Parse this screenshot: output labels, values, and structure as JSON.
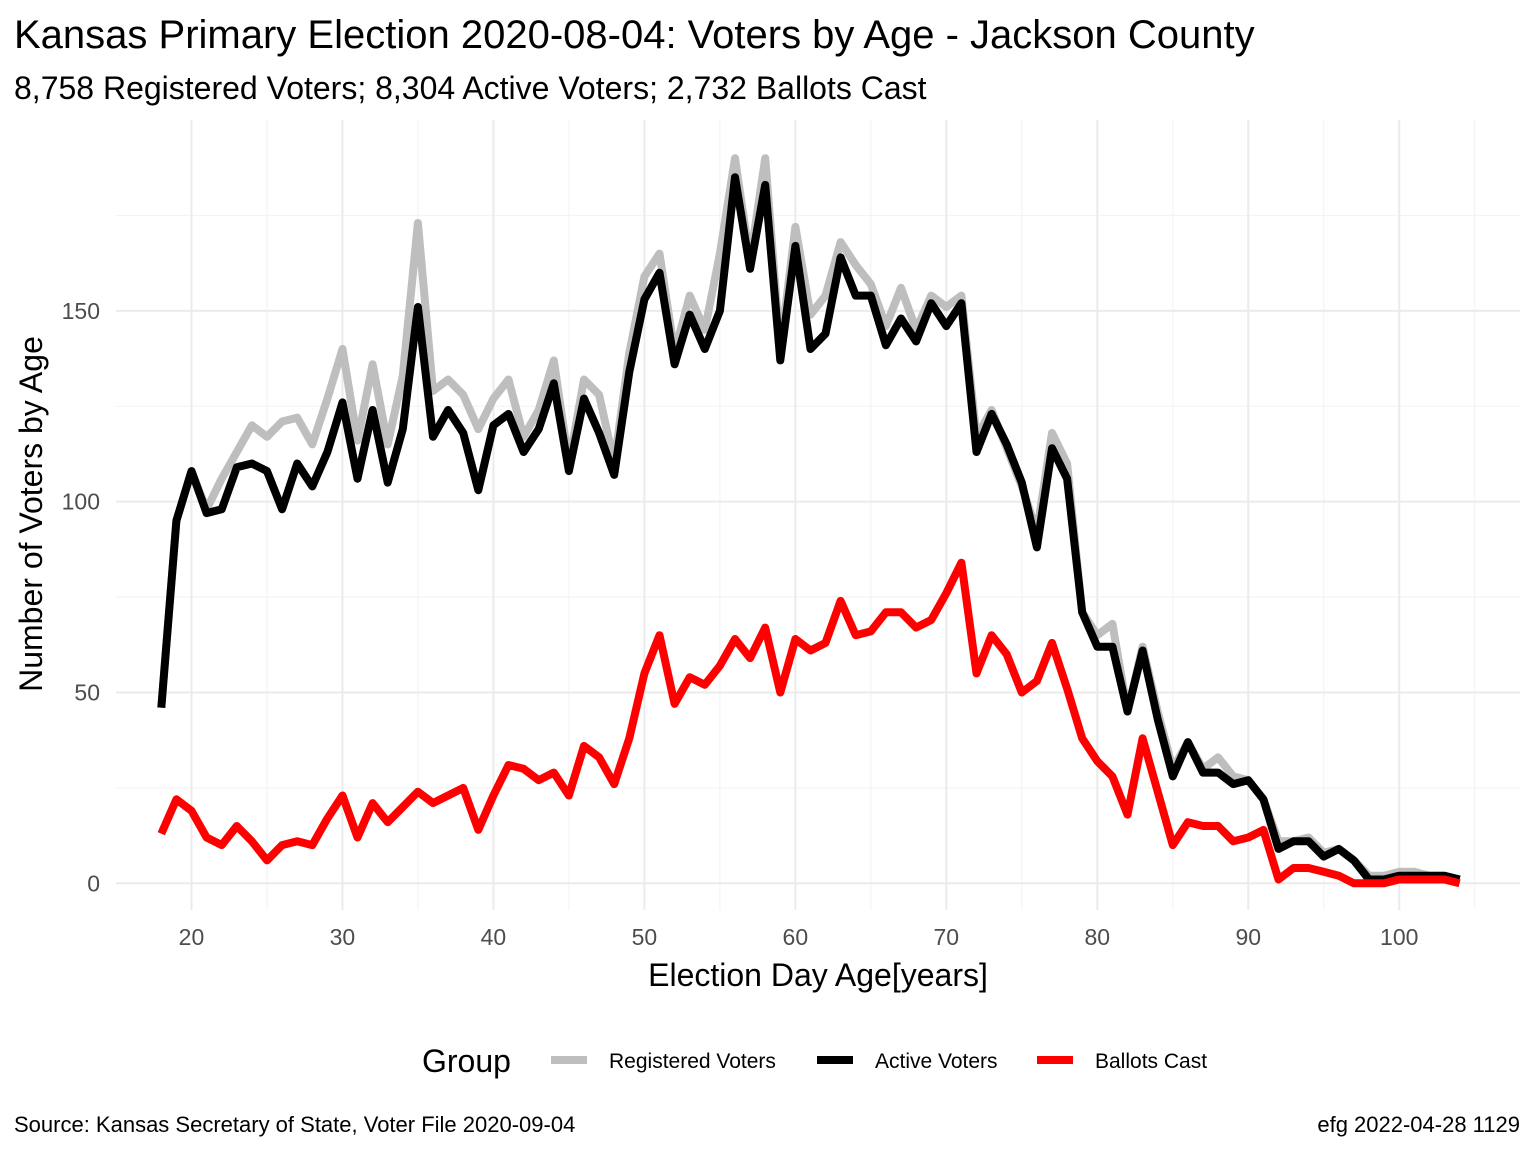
{
  "chart_data": {
    "type": "line",
    "title": "Kansas Primary Election 2020-08-04:  Voters by Age - Jackson County",
    "subtitle": "8,758 Registered Voters; 8,304 Active Voters; 2,732 Ballots Cast",
    "xlabel": "Election Day Age[years]",
    "ylabel": "Number of Voters by Age",
    "xlim": [
      15,
      108
    ],
    "ylim": [
      -7,
      200
    ],
    "x_ticks": [
      20,
      30,
      40,
      50,
      60,
      70,
      80,
      90,
      100
    ],
    "y_ticks": [
      0,
      50,
      100,
      150
    ],
    "legend": {
      "title": "Group",
      "position": "bottom"
    },
    "x": [
      18,
      19,
      20,
      21,
      22,
      23,
      24,
      25,
      26,
      27,
      28,
      29,
      30,
      31,
      32,
      33,
      34,
      35,
      36,
      37,
      38,
      39,
      40,
      41,
      42,
      43,
      44,
      45,
      46,
      47,
      48,
      49,
      50,
      51,
      52,
      53,
      54,
      55,
      56,
      57,
      58,
      59,
      60,
      61,
      62,
      63,
      64,
      65,
      66,
      67,
      68,
      69,
      70,
      71,
      72,
      73,
      74,
      75,
      76,
      77,
      78,
      79,
      80,
      81,
      82,
      83,
      84,
      85,
      86,
      87,
      88,
      89,
      90,
      91,
      92,
      93,
      94,
      95,
      96,
      97,
      98,
      99,
      100,
      101,
      102,
      103,
      104
    ],
    "series": [
      {
        "name": "Registered Voters",
        "color": "#bebebe",
        "values": [
          46,
          95,
          108,
          98,
          106,
          113,
          120,
          117,
          121,
          122,
          115,
          127,
          140,
          116,
          136,
          115,
          133,
          173,
          129,
          132,
          128,
          119,
          127,
          132,
          117,
          124,
          137,
          110,
          132,
          128,
          110,
          139,
          159,
          165,
          139,
          154,
          145,
          165,
          190,
          163,
          190,
          140,
          172,
          149,
          154,
          168,
          162,
          157,
          146,
          156,
          145,
          154,
          151,
          154,
          117,
          124,
          114,
          104,
          92,
          118,
          110,
          71,
          65,
          68,
          45,
          62,
          45,
          30,
          37,
          30,
          33,
          28,
          27,
          22,
          11,
          11,
          12,
          8,
          9,
          6,
          2,
          2,
          3,
          3,
          2,
          2,
          1
        ]
      },
      {
        "name": "Active Voters",
        "color": "#000000",
        "values": [
          46,
          95,
          108,
          97,
          98,
          109,
          110,
          108,
          98,
          110,
          104,
          113,
          126,
          106,
          124,
          105,
          119,
          151,
          117,
          124,
          118,
          103,
          120,
          123,
          113,
          119,
          131,
          108,
          127,
          118,
          107,
          134,
          153,
          160,
          136,
          149,
          140,
          150,
          185,
          161,
          183,
          137,
          167,
          140,
          144,
          164,
          154,
          154,
          141,
          148,
          142,
          152,
          146,
          152,
          113,
          123,
          115,
          105,
          88,
          114,
          106,
          71,
          62,
          62,
          45,
          61,
          43,
          28,
          37,
          29,
          29,
          26,
          27,
          22,
          9,
          11,
          11,
          7,
          9,
          6,
          1,
          1,
          2,
          2,
          2,
          2,
          1
        ]
      },
      {
        "name": "Ballots Cast",
        "color": "#ff0000",
        "values": [
          13,
          22,
          19,
          12,
          10,
          15,
          11,
          6,
          10,
          11,
          10,
          17,
          23,
          12,
          21,
          16,
          20,
          24,
          21,
          23,
          25,
          14,
          23,
          31,
          30,
          27,
          29,
          23,
          36,
          33,
          26,
          38,
          55,
          65,
          47,
          54,
          52,
          57,
          64,
          59,
          67,
          50,
          64,
          61,
          63,
          74,
          65,
          66,
          71,
          71,
          67,
          69,
          76,
          84,
          55,
          65,
          60,
          50,
          53,
          63,
          51,
          38,
          32,
          28,
          18,
          38,
          24,
          10,
          16,
          15,
          15,
          11,
          12,
          14,
          1,
          4,
          4,
          3,
          2,
          0,
          0,
          0,
          1,
          1,
          1,
          1,
          0
        ]
      }
    ]
  },
  "caption": {
    "source": "Source:  Kansas Secretary of State, Voter File  2020-09-04",
    "credit": "efg 2022-04-28 1129"
  }
}
